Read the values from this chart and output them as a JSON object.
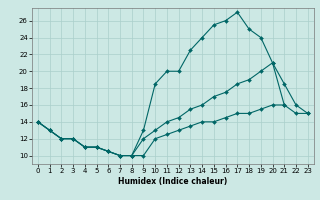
{
  "xlabel": "Humidex (Indice chaleur)",
  "xlim": [
    -0.5,
    23.5
  ],
  "ylim": [
    9.0,
    27.5
  ],
  "yticks": [
    10,
    12,
    14,
    16,
    18,
    20,
    22,
    24,
    26
  ],
  "xticks": [
    0,
    1,
    2,
    3,
    4,
    5,
    6,
    7,
    8,
    9,
    10,
    11,
    12,
    13,
    14,
    15,
    16,
    17,
    18,
    19,
    20,
    21,
    22,
    23
  ],
  "bg_color": "#cce8e4",
  "grid_color": "#aacfcb",
  "line_color": "#006666",
  "lines": [
    {
      "x": [
        0,
        1,
        2,
        3,
        4,
        5,
        6,
        7,
        8,
        9,
        10,
        11,
        12,
        13,
        14,
        15,
        16,
        17,
        18,
        19,
        20,
        21
      ],
      "y": [
        14,
        13,
        12,
        12,
        11,
        11,
        10.5,
        10,
        10,
        13,
        18.5,
        20,
        20,
        22.5,
        24,
        25.5,
        26,
        27,
        25,
        24,
        21,
        16
      ]
    },
    {
      "x": [
        0,
        1,
        2,
        3,
        4,
        5,
        6,
        7,
        8,
        9,
        10,
        11,
        12,
        13,
        14,
        15,
        16,
        17,
        18,
        19,
        20,
        21,
        22,
        23
      ],
      "y": [
        14,
        13,
        12,
        12,
        11,
        11,
        10.5,
        10,
        10,
        12,
        13,
        14,
        14.5,
        15.5,
        16,
        17,
        17.5,
        18.5,
        19,
        20,
        21,
        18.5,
        16,
        15
      ]
    },
    {
      "x": [
        0,
        1,
        2,
        3,
        4,
        5,
        6,
        7,
        8,
        9,
        10,
        11,
        12,
        13,
        14,
        15,
        16,
        17,
        18,
        19,
        20,
        21,
        22,
        23
      ],
      "y": [
        14,
        13,
        12,
        12,
        11,
        11,
        10.5,
        10,
        10,
        10,
        12,
        12.5,
        13,
        13.5,
        14,
        14,
        14.5,
        15,
        15,
        15.5,
        16,
        16,
        15,
        15
      ]
    }
  ]
}
